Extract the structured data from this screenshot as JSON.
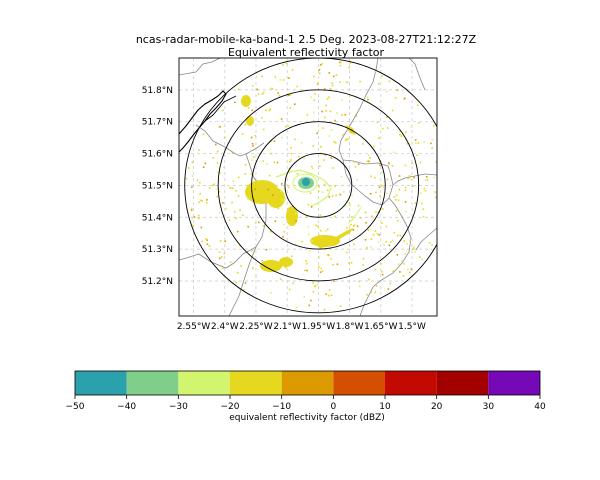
{
  "title": {
    "line1": "ncas-radar-mobile-ka-band-1 2.5 Deg. 2023-08-27T21:12:27Z",
    "line2": "Equivalent reflectivity factor"
  },
  "map": {
    "lon_range": [
      -2.62,
      -1.38
    ],
    "lat_range": [
      51.09,
      51.9
    ],
    "radar_center": {
      "lon": -1.95,
      "lat": 51.5
    },
    "range_ring_radii_deg_lat": [
      0.1,
      0.2,
      0.3,
      0.4
    ],
    "gridlines": true,
    "x_ticks": [
      {
        "value": -2.55,
        "label": "2.55°W"
      },
      {
        "value": -2.4,
        "label": "2.4°W"
      },
      {
        "value": -2.25,
        "label": "2.25°W"
      },
      {
        "value": -2.1,
        "label": "2.1°W"
      },
      {
        "value": -1.95,
        "label": "1.95°W"
      },
      {
        "value": -1.8,
        "label": "1.8°W"
      },
      {
        "value": -1.65,
        "label": "1.65°W"
      },
      {
        "value": -1.5,
        "label": "1.5°W"
      }
    ],
    "y_ticks": [
      {
        "value": 51.2,
        "label": "51.2°N"
      },
      {
        "value": 51.3,
        "label": "51.3°N"
      },
      {
        "value": 51.4,
        "label": "51.4°N"
      },
      {
        "value": 51.5,
        "label": "51.5°N"
      },
      {
        "value": 51.6,
        "label": "51.6°N"
      },
      {
        "value": 51.7,
        "label": "51.7°N"
      },
      {
        "value": 51.8,
        "label": "51.8°N"
      }
    ]
  },
  "colorbar": {
    "label": "equivalent reflectivity factor (dBZ)",
    "bounds": [
      -50,
      -40,
      -30,
      -20,
      -10,
      0,
      10,
      20,
      30,
      40
    ],
    "tick_labels": [
      "−50",
      "−40",
      "−30",
      "−20",
      "−10",
      "0",
      "10",
      "20",
      "30",
      "40"
    ],
    "colors": [
      "#2aa1ad",
      "#7fcf8a",
      "#d1f56e",
      "#e5d81f",
      "#dd9a00",
      "#d45000",
      "#c20a00",
      "#a30000",
      "#7409b5"
    ]
  }
}
